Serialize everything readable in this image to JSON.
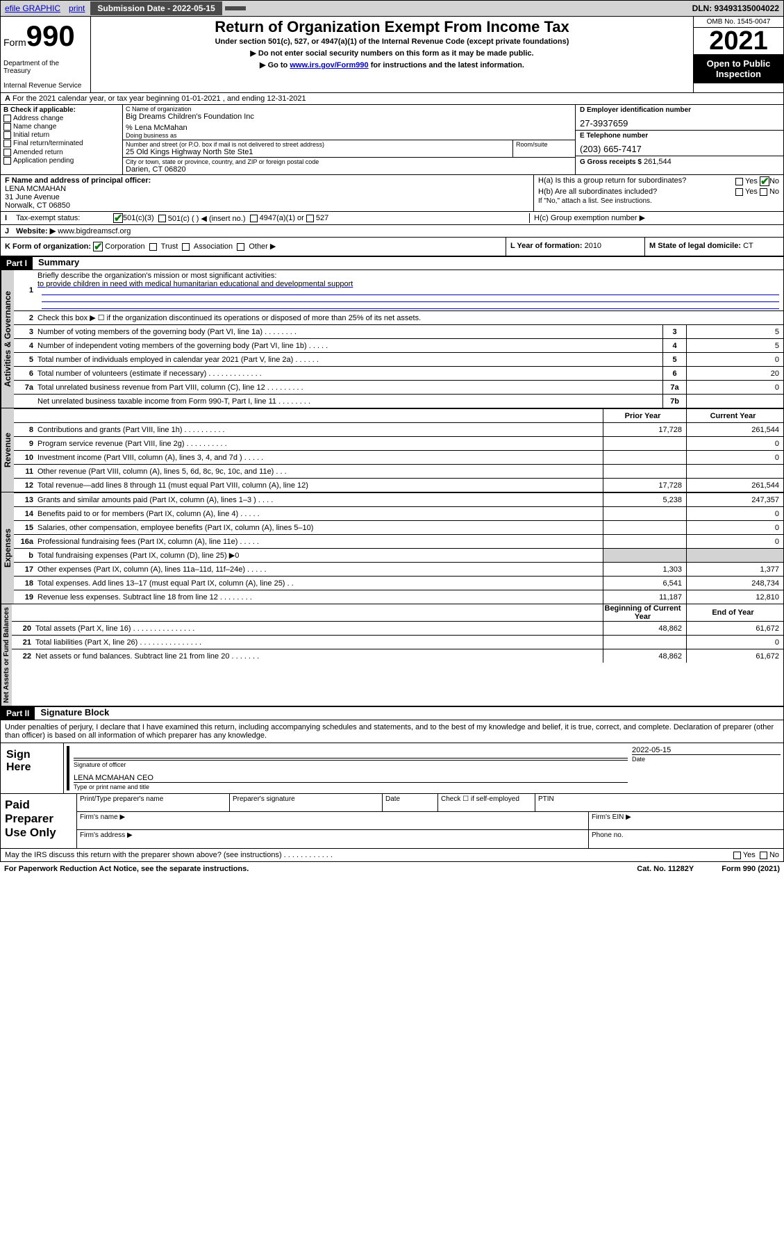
{
  "topbar": {
    "efile": "efile GRAPHIC",
    "print": "print",
    "sub_date_label": "Submission Date - 2022-05-15",
    "dln": "DLN: 93493135004022"
  },
  "header": {
    "form_word": "Form",
    "form_num": "990",
    "dept": "Department of the Treasury",
    "irs": "Internal Revenue Service",
    "title": "Return of Organization Exempt From Income Tax",
    "subtitle": "Under section 501(c), 527, or 4947(a)(1) of the Internal Revenue Code (except private foundations)",
    "instr1": "▶ Do not enter social security numbers on this form as it may be made public.",
    "instr2_pre": "▶ Go to ",
    "instr2_link": "www.irs.gov/Form990",
    "instr2_post": " for instructions and the latest information.",
    "omb": "OMB No. 1545-0047",
    "year": "2021",
    "inspect": "Open to Public Inspection"
  },
  "row_a": "For the 2021 calendar year, or tax year beginning 01-01-2021   , and ending 12-31-2021",
  "section_b": {
    "label": "B Check if applicable:",
    "items": [
      "Address change",
      "Name change",
      "Initial return",
      "Final return/terminated",
      "Amended return",
      "Application pending"
    ]
  },
  "section_c": {
    "name_label": "C Name of organization",
    "name": "Big Dreams Children's Foundation Inc",
    "care_of": "% Lena McMahan",
    "dba_label": "Doing business as",
    "dba": "",
    "street_label": "Number and street (or P.O. box if mail is not delivered to street address)",
    "street": "25 Old Kings Highway North Ste Ste1",
    "room_label": "Room/suite",
    "room": "",
    "city_label": "City or town, state or province, country, and ZIP or foreign postal code",
    "city": "Darien, CT  06820"
  },
  "section_d": {
    "label": "D Employer identification number",
    "value": "27-3937659"
  },
  "section_e": {
    "label": "E Telephone number",
    "value": "(203) 665-7417"
  },
  "section_g": {
    "label": "G Gross receipts $",
    "value": "261,544"
  },
  "section_f": {
    "label": "F Name and address of principal officer:",
    "name": "LENA MCMAHAN",
    "addr1": "31 June Avenue",
    "addr2": "Norwalk, CT  06850"
  },
  "section_h": {
    "ha": "H(a)  Is this a group return for subordinates?",
    "hb": "H(b)  Are all subordinates included?",
    "hb_note": "If \"No,\" attach a list. See instructions.",
    "hc": "H(c)  Group exemption number ▶",
    "yes": "Yes",
    "no": "No"
  },
  "row_i": {
    "label": "Tax-exempt status:",
    "opts": [
      "501(c)(3)",
      "501(c) (  ) ◀ (insert no.)",
      "4947(a)(1) or",
      "527"
    ]
  },
  "row_j": {
    "label": "Website: ▶",
    "value": "www.bigdreamscf.org"
  },
  "row_k": {
    "label": "K Form of organization:",
    "opts": [
      "Corporation",
      "Trust",
      "Association",
      "Other ▶"
    ]
  },
  "row_l": {
    "label": "L Year of formation:",
    "value": "2010"
  },
  "row_m": {
    "label": "M State of legal domicile:",
    "value": "CT"
  },
  "part1": {
    "tag": "Part I",
    "title": "Summary",
    "line1_label": "Briefly describe the organization's mission or most significant activities:",
    "line1_text": "to provide children in need with medical humanitarian educational and developmental support",
    "line2": "Check this box ▶ ☐  if the organization discontinued its operations or disposed of more than 25% of its net assets.",
    "head_prior": "Prior Year",
    "head_current": "Current Year",
    "head_boy": "Beginning of Current Year",
    "head_eoy": "End of Year",
    "lines_single": [
      {
        "n": "3",
        "t": "Number of voting members of the governing body (Part VI, line 1a)   .    .    .    .    .    .    .    .",
        "box": "3",
        "v": "5"
      },
      {
        "n": "4",
        "t": "Number of independent voting members of the governing body (Part VI, line 1b)   .    .    .    .    .",
        "box": "4",
        "v": "5"
      },
      {
        "n": "5",
        "t": "Total number of individuals employed in calendar year 2021 (Part V, line 2a)   .    .    .    .    .    .",
        "box": "5",
        "v": "0"
      },
      {
        "n": "6",
        "t": "Total number of volunteers (estimate if necessary)   .    .    .    .    .    .    .    .    .    .    .    .    .",
        "box": "6",
        "v": "20"
      },
      {
        "n": "7a",
        "t": "Total unrelated business revenue from Part VIII, column (C), line 12   .    .    .    .    .    .    .    .    .",
        "box": "7a",
        "v": "0"
      },
      {
        "n": "",
        "t": "Net unrelated business taxable income from Form 990-T, Part I, line 11   .    .    .    .    .    .    .    .",
        "box": "7b",
        "v": ""
      }
    ],
    "lines_rev": [
      {
        "n": "8",
        "t": "Contributions and grants (Part VIII, line 1h)   .    .    .    .    .    .    .    .    .    .",
        "p": "17,728",
        "c": "261,544"
      },
      {
        "n": "9",
        "t": "Program service revenue (Part VIII, line 2g)   .    .    .    .    .    .    .    .    .    .",
        "p": "",
        "c": "0"
      },
      {
        "n": "10",
        "t": "Investment income (Part VIII, column (A), lines 3, 4, and 7d )   .    .    .    .    .",
        "p": "",
        "c": "0"
      },
      {
        "n": "11",
        "t": "Other revenue (Part VIII, column (A), lines 5, 6d, 8c, 9c, 10c, and 11e)   .    .    .",
        "p": "",
        "c": ""
      },
      {
        "n": "12",
        "t": "Total revenue—add lines 8 through 11 (must equal Part VIII, column (A), line 12)",
        "p": "17,728",
        "c": "261,544"
      }
    ],
    "lines_exp": [
      {
        "n": "13",
        "t": "Grants and similar amounts paid (Part IX, column (A), lines 1–3 )   .    .    .    .",
        "p": "5,238",
        "c": "247,357"
      },
      {
        "n": "14",
        "t": "Benefits paid to or for members (Part IX, column (A), line 4)   .    .    .    .    .",
        "p": "",
        "c": "0"
      },
      {
        "n": "15",
        "t": "Salaries, other compensation, employee benefits (Part IX, column (A), lines 5–10)",
        "p": "",
        "c": "0"
      },
      {
        "n": "16a",
        "t": "Professional fundraising fees (Part IX, column (A), line 11e)   .    .    .    .    .",
        "p": "",
        "c": "0"
      },
      {
        "n": "b",
        "t": "Total fundraising expenses (Part IX, column (D), line 25) ▶0",
        "p": "",
        "c": "",
        "shade": true
      },
      {
        "n": "17",
        "t": "Other expenses (Part IX, column (A), lines 11a–11d, 11f–24e)   .    .    .    .    .",
        "p": "1,303",
        "c": "1,377"
      },
      {
        "n": "18",
        "t": "Total expenses. Add lines 13–17 (must equal Part IX, column (A), line 25)   .    .",
        "p": "6,541",
        "c": "248,734"
      },
      {
        "n": "19",
        "t": "Revenue less expenses. Subtract line 18 from line 12   .    .    .    .    .    .    .    .",
        "p": "11,187",
        "c": "12,810"
      }
    ],
    "lines_net": [
      {
        "n": "20",
        "t": "Total assets (Part X, line 16)   .    .    .    .    .    .    .    .    .    .    .    .    .    .    .",
        "p": "48,862",
        "c": "61,672"
      },
      {
        "n": "21",
        "t": "Total liabilities (Part X, line 26)   .    .    .    .    .    .    .    .    .    .    .    .    .    .    .",
        "p": "",
        "c": "0"
      },
      {
        "n": "22",
        "t": "Net assets or fund balances. Subtract line 21 from line 20   .    .    .    .    .    .    .",
        "p": "48,862",
        "c": "61,672"
      }
    ],
    "side_ag": "Activities & Governance",
    "side_rev": "Revenue",
    "side_exp": "Expenses",
    "side_net": "Net Assets or Fund Balances"
  },
  "part2": {
    "tag": "Part II",
    "title": "Signature Block",
    "decl": "Under penalties of perjury, I declare that I have examined this return, including accompanying schedules and statements, and to the best of my knowledge and belief, it is true, correct, and complete. Declaration of preparer (other than officer) is based on all information of which preparer has any knowledge.",
    "sign_here": "Sign Here",
    "sig_officer": "Signature of officer",
    "date": "Date",
    "date_val": "2022-05-15",
    "name_title": "LENA MCMAHAN CEO",
    "name_title_label": "Type or print name and title",
    "paid": "Paid Preparer Use Only",
    "pp_name": "Print/Type preparer's name",
    "pp_sig": "Preparer's signature",
    "pp_date": "Date",
    "pp_check": "Check ☐ if self-employed",
    "pp_ptin": "PTIN",
    "firm_name": "Firm's name    ▶",
    "firm_ein": "Firm's EIN ▶",
    "firm_addr": "Firm's address ▶",
    "phone": "Phone no."
  },
  "footer": {
    "may_irs": "May the IRS discuss this return with the preparer shown above? (see instructions)   .    .    .    .    .    .    .    .    .    .    .    .",
    "yes": "Yes",
    "no": "No",
    "paperwork": "For Paperwork Reduction Act Notice, see the separate instructions.",
    "cat": "Cat. No. 11282Y",
    "form": "Form 990 (2021)"
  },
  "colors": {
    "link": "#0000cc",
    "topbar_bg": "#d3d3d3",
    "btn_bg": "#4a4a4a",
    "check_green": "#0a7a0a"
  }
}
